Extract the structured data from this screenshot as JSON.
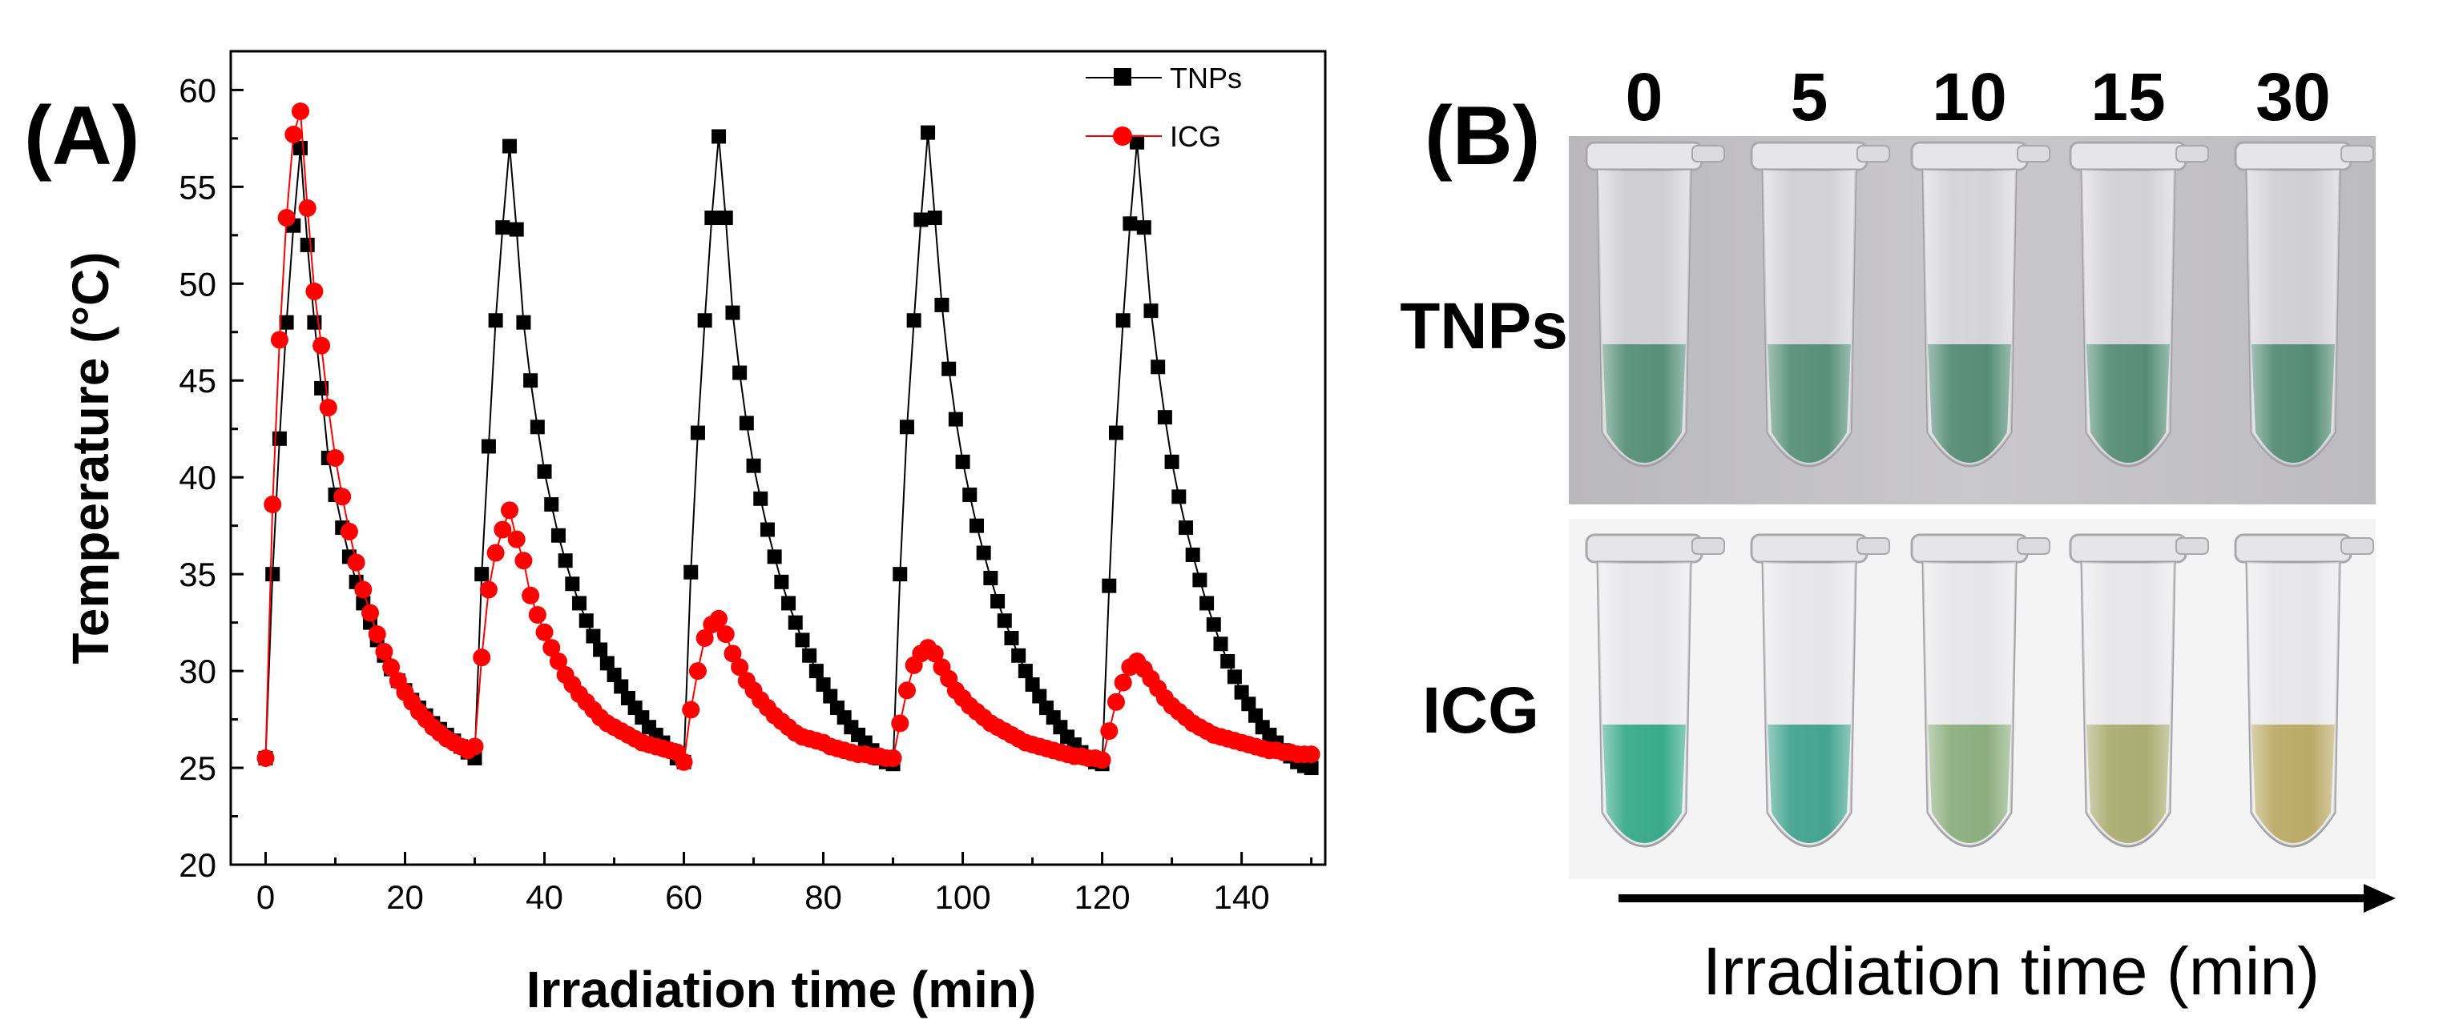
{
  "panel_a_label": "(A)",
  "panel_b_label": "(B)",
  "chart_data": {
    "type": "line",
    "xlabel": "Irradiation time (min)",
    "ylabel": "Temperature (°C)",
    "xlim": [
      -5,
      152
    ],
    "ylim": [
      20,
      62
    ],
    "xticks": [
      0,
      20,
      40,
      60,
      80,
      100,
      120,
      140
    ],
    "yticks": [
      20,
      25,
      30,
      35,
      40,
      45,
      50,
      55,
      60
    ],
    "legend_position": "top-right",
    "series": [
      {
        "name": "TNPs",
        "color": "#000000",
        "marker": "square",
        "x": [
          0,
          1,
          2,
          3,
          4,
          5,
          6,
          7,
          8,
          9,
          10,
          11,
          12,
          13,
          14,
          15,
          16,
          17,
          18,
          19,
          20,
          21,
          22,
          23,
          24,
          25,
          26,
          27,
          28,
          29,
          30,
          31,
          32,
          33,
          34,
          35,
          36,
          37,
          38,
          39,
          40,
          41,
          42,
          43,
          44,
          45,
          46,
          47,
          48,
          49,
          50,
          51,
          52,
          53,
          54,
          55,
          56,
          57,
          58,
          59,
          60,
          61,
          62,
          63,
          64,
          65,
          66,
          67,
          68,
          69,
          70,
          71,
          72,
          73,
          74,
          75,
          76,
          77,
          78,
          79,
          80,
          81,
          82,
          83,
          84,
          85,
          86,
          87,
          88,
          89,
          90,
          91,
          92,
          93,
          94,
          95,
          96,
          97,
          98,
          99,
          100,
          101,
          102,
          103,
          104,
          105,
          106,
          107,
          108,
          109,
          110,
          111,
          112,
          113,
          114,
          115,
          116,
          117,
          118,
          119,
          120,
          121,
          122,
          123,
          124,
          125,
          126,
          127,
          128,
          129,
          130,
          131,
          132,
          133,
          134,
          135,
          136,
          137,
          138,
          139,
          140,
          141,
          142,
          143,
          144,
          145,
          146,
          147,
          148,
          149,
          150
        ],
        "y": [
          25.5,
          35,
          42,
          48,
          53,
          57,
          52,
          48,
          44.6,
          41,
          39.1,
          37.4,
          35.9,
          34.6,
          33.5,
          32.5,
          31.6,
          30.8,
          30.1,
          29.5,
          29,
          28.5,
          28.1,
          27.7,
          27.3,
          27,
          26.7,
          26.4,
          26.1,
          25.8,
          25.5,
          35,
          41.6,
          48.1,
          52.9,
          57.1,
          52.8,
          48,
          45,
          42.6,
          40.3,
          38.6,
          37,
          35.7,
          34.5,
          33.5,
          32.6,
          31.8,
          31.1,
          30.4,
          29.8,
          29.2,
          28.6,
          28.1,
          27.6,
          27.1,
          26.7,
          26.3,
          25.9,
          25.5,
          25.3,
          35.1,
          42.3,
          48.1,
          53.4,
          57.6,
          53.4,
          48.5,
          45.4,
          42.8,
          40.6,
          38.9,
          37.3,
          35.9,
          34.6,
          33.5,
          32.5,
          31.6,
          30.8,
          30,
          29.3,
          28.7,
          28.1,
          27.6,
          27.1,
          26.7,
          26.3,
          25.9,
          25.5,
          25.3,
          25.2,
          35,
          42.6,
          48.1,
          53.3,
          57.8,
          53.4,
          48.9,
          45.6,
          43,
          40.8,
          39.1,
          37.5,
          36.1,
          34.8,
          33.6,
          32.6,
          31.7,
          30.8,
          30,
          29.3,
          28.7,
          28.1,
          27.6,
          27.1,
          26.6,
          26.2,
          25.8,
          25.5,
          25.3,
          25.2,
          34.4,
          42.3,
          48.1,
          53.1,
          57.3,
          52.9,
          48.6,
          45.7,
          43.1,
          40.8,
          39,
          37.4,
          36,
          34.7,
          33.5,
          32.4,
          31.4,
          30.5,
          29.7,
          28.9,
          28.3,
          27.7,
          27.1,
          26.7,
          26.3,
          25.9,
          25.6,
          25.3,
          25.1,
          25
        ]
      },
      {
        "name": "ICG",
        "color": "#ff0000",
        "marker": "circle",
        "x": [
          0,
          1,
          2,
          3,
          4,
          5,
          6,
          7,
          8,
          9,
          10,
          11,
          12,
          13,
          14,
          15,
          16,
          17,
          18,
          19,
          20,
          21,
          22,
          23,
          24,
          25,
          26,
          27,
          28,
          29,
          30,
          31,
          32,
          33,
          34,
          35,
          36,
          37,
          38,
          39,
          40,
          41,
          42,
          43,
          44,
          45,
          46,
          47,
          48,
          49,
          50,
          51,
          52,
          53,
          54,
          55,
          56,
          57,
          58,
          59,
          60,
          61,
          62,
          63,
          64,
          65,
          66,
          67,
          68,
          69,
          70,
          71,
          72,
          73,
          74,
          75,
          76,
          77,
          78,
          79,
          80,
          81,
          82,
          83,
          84,
          85,
          86,
          87,
          88,
          89,
          90,
          91,
          92,
          93,
          94,
          95,
          96,
          97,
          98,
          99,
          100,
          101,
          102,
          103,
          104,
          105,
          106,
          107,
          108,
          109,
          110,
          111,
          112,
          113,
          114,
          115,
          116,
          117,
          118,
          119,
          120,
          121,
          122,
          123,
          124,
          125,
          126,
          127,
          128,
          129,
          130,
          131,
          132,
          133,
          134,
          135,
          136,
          137,
          138,
          139,
          140,
          141,
          142,
          143,
          144,
          145,
          146,
          147,
          148,
          149,
          150
        ],
        "y": [
          25.5,
          38.6,
          47.1,
          53.4,
          57.7,
          58.9,
          53.9,
          49.6,
          46.8,
          43.6,
          41,
          39,
          37.2,
          35.6,
          34.2,
          33,
          31.9,
          31,
          30.2,
          29.5,
          28.9,
          28.4,
          27.9,
          27.5,
          27.1,
          26.8,
          26.5,
          26.3,
          26.1,
          25.9,
          26.1,
          30.7,
          34.2,
          36.1,
          37.3,
          38.3,
          36.8,
          35.7,
          33.9,
          32.9,
          32,
          31.2,
          30.5,
          29.8,
          29.3,
          28.8,
          28.4,
          28,
          27.6,
          27.3,
          27.1,
          26.9,
          26.7,
          26.5,
          26.3,
          26.2,
          26.1,
          26,
          25.9,
          25.8,
          25.3,
          28,
          30,
          31.7,
          32.4,
          32.7,
          31.9,
          30.9,
          30.2,
          29.5,
          29,
          28.5,
          28.1,
          27.7,
          27.4,
          27.1,
          26.8,
          26.6,
          26.5,
          26.4,
          26.3,
          26.1,
          26,
          25.9,
          25.8,
          25.7,
          25.7,
          25.6,
          25.6,
          25.5,
          25.5,
          27.3,
          29,
          30.3,
          30.9,
          31.2,
          30.9,
          30.2,
          29.6,
          29,
          28.6,
          28.2,
          27.9,
          27.6,
          27.3,
          27.1,
          26.9,
          26.7,
          26.5,
          26.3,
          26.2,
          26.1,
          26,
          25.9,
          25.8,
          25.7,
          25.6,
          25.6,
          25.5,
          25.5,
          25.4,
          26.9,
          28.4,
          29.4,
          30.2,
          30.5,
          30.1,
          29.6,
          29.1,
          28.6,
          28.2,
          27.9,
          27.6,
          27.3,
          27.1,
          26.9,
          26.7,
          26.6,
          26.5,
          26.4,
          26.3,
          26.2,
          26.1,
          26,
          25.9,
          25.9,
          25.8,
          25.8,
          25.7,
          25.7,
          25.7
        ]
      }
    ]
  },
  "panel_b": {
    "column_labels": [
      "0",
      "5",
      "10",
      "15",
      "30"
    ],
    "row_labels": [
      "TNPs",
      "ICG"
    ],
    "axis_title": "Irradiation time (min)",
    "tnps_liquid_colors": [
      "#4e8a72",
      "#4f8a73",
      "#4c8670",
      "#4d8771",
      "#4b8670"
    ],
    "icg_liquid_colors": [
      "#2fa585",
      "#3a9f8a",
      "#86aa78",
      "#a5a86a",
      "#b7a660"
    ]
  }
}
